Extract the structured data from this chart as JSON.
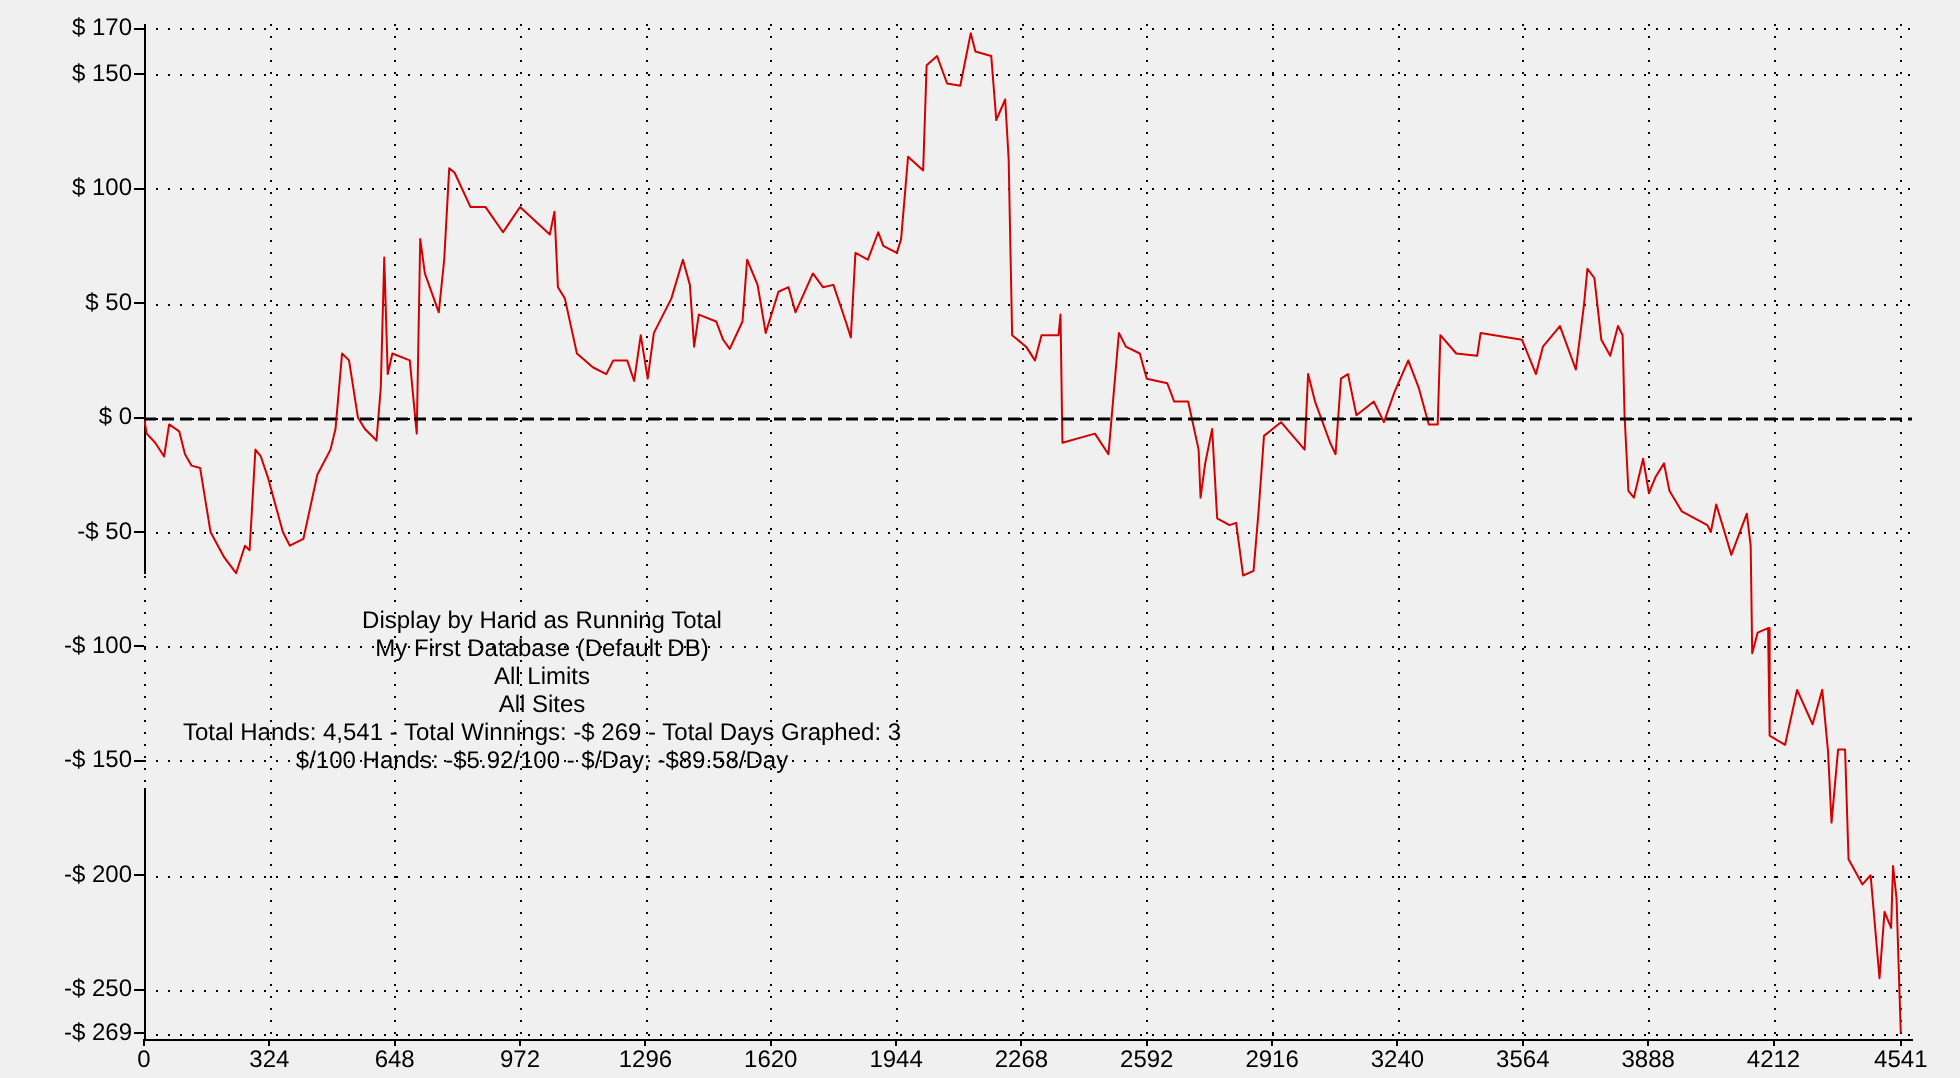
{
  "chart_data": {
    "type": "line",
    "annotations": [
      "Display by Hand as Running Total",
      "My First Database (Default DB)",
      "All Limits",
      "All Sites",
      "Total Hands: 4,541 - Total Winnings: -$ 269 - Total Days Graphed: 3",
      "$/100 Hands: -$5.92/100 - $/Day: -$89.58/Day"
    ],
    "x": [
      0,
      7,
      29,
      52,
      65,
      91,
      106,
      123,
      145,
      172,
      207,
      238,
      261,
      273,
      288,
      302,
      320,
      359,
      377,
      412,
      448,
      482,
      495,
      512,
      530,
      553,
      571,
      601,
      612,
      621,
      630,
      642,
      687,
      705,
      714,
      726,
      762,
      776,
      789,
      803,
      844,
      883,
      928,
      972,
      1049,
      1061,
      1070,
      1088,
      1119,
      1160,
      1195,
      1213,
      1249,
      1267,
      1284,
      1302,
      1318,
      1363,
      1393,
      1411,
      1422,
      1434,
      1479,
      1497,
      1514,
      1547,
      1559,
      1586,
      1607,
      1640,
      1666,
      1684,
      1729,
      1755,
      1782,
      1800,
      1814,
      1827,
      1839,
      1871,
      1898,
      1911,
      1946,
      1957,
      1975,
      2014,
      2023,
      2050,
      2076,
      2110,
      2137,
      2149,
      2190,
      2203,
      2226,
      2235,
      2244,
      2280,
      2303,
      2320,
      2364,
      2369,
      2374,
      2458,
      2493,
      2520,
      2538,
      2574,
      2592,
      2645,
      2663,
      2699,
      2726,
      2731,
      2743,
      2761,
      2774,
      2806,
      2823,
      2841,
      2868,
      2881,
      2895,
      2939,
      3000,
      3009,
      3027,
      3066,
      3080,
      3094,
      3112,
      3134,
      3179,
      3205,
      3232,
      3268,
      3295,
      3321,
      3344,
      3351,
      3392,
      3446,
      3455,
      3562,
      3598,
      3616,
      3660,
      3701,
      3722,
      3731,
      3749,
      3767,
      3790,
      3810,
      3822,
      3827,
      3837,
      3851,
      3875,
      3890,
      3907,
      3929,
      3943,
      3975,
      4041,
      4050,
      4064,
      4082,
      4103,
      4143,
      4153,
      4157,
      4171,
      4198,
      4202,
      4242,
      4273,
      4313,
      4338,
      4353,
      4362,
      4379,
      4397,
      4406,
      4442,
      4463,
      4486,
      4499,
      4516,
      4521,
      4530,
      4541
    ],
    "series": [
      {
        "color": "#d40000",
        "values": [
          0,
          -7,
          -11,
          -17,
          -3,
          -6,
          -16,
          -21,
          -22,
          -50,
          -61,
          -68,
          -56,
          -58,
          -14,
          -17,
          -26,
          -50,
          -56,
          -53,
          -25,
          -14,
          -5,
          28,
          25,
          0,
          -5,
          -10,
          13,
          70,
          19,
          28,
          25,
          -7,
          78,
          63,
          46,
          69,
          109,
          107,
          92,
          92,
          81,
          92,
          80,
          90,
          57,
          52,
          28,
          22,
          19,
          25,
          25,
          16,
          36,
          17,
          37,
          52,
          69,
          58,
          31,
          45,
          42,
          34,
          30,
          42,
          69,
          58,
          37,
          55,
          57,
          46,
          63,
          57,
          58,
          49,
          42,
          35,
          72,
          69,
          81,
          75,
          72,
          78,
          114,
          108,
          154,
          158,
          146,
          145,
          168,
          160,
          158,
          130,
          139,
          113,
          36,
          31,
          25,
          36,
          36,
          45,
          -11,
          -7,
          -16,
          37,
          31,
          28,
          17,
          15,
          7,
          7,
          -14,
          -35,
          -20,
          -5,
          -44,
          -47,
          -46,
          -69,
          -67,
          -41,
          -8,
          -2,
          -14,
          19,
          7,
          -11,
          -16,
          17,
          19,
          1,
          7,
          -2,
          11,
          25,
          13,
          -3,
          -3,
          36,
          28,
          27,
          37,
          34,
          19,
          31,
          40,
          21,
          49,
          65,
          61,
          34,
          27,
          40,
          36,
          1,
          -32,
          -35,
          -18,
          -33,
          -26,
          -20,
          -32,
          -41,
          -47,
          -50,
          -38,
          -48,
          -60,
          -42,
          -56,
          -103,
          -94,
          -92,
          -139,
          -143,
          -119,
          -134,
          -119,
          -146,
          -177,
          -145,
          -145,
          -193,
          -204,
          -200,
          -245,
          -216,
          -223,
          -196,
          -210,
          -269
        ]
      }
    ],
    "xlim": [
      0,
      4570
    ],
    "xticks": [
      0,
      324,
      648,
      972,
      1296,
      1620,
      1944,
      2268,
      2592,
      2916,
      3240,
      3564,
      3888,
      4212,
      4541
    ],
    "ylim": [
      -272,
      172
    ],
    "yticks": [
      {
        "value": 170,
        "label": "$ 170"
      },
      {
        "value": 150,
        "label": "$ 150"
      },
      {
        "value": 100,
        "label": "$ 100"
      },
      {
        "value": 50,
        "label": "$ 50"
      },
      {
        "value": 0,
        "label": "$ 0"
      },
      {
        "value": -50,
        "label": "-$ 50"
      },
      {
        "value": -100,
        "label": "-$ 100"
      },
      {
        "value": -150,
        "label": "-$ 150"
      },
      {
        "value": -200,
        "label": "-$ 200"
      },
      {
        "value": -250,
        "label": "-$ 250"
      },
      {
        "value": -269,
        "label": "-$ 269"
      }
    ],
    "grid": true,
    "ref_lines": [
      {
        "axis": "y",
        "value": 0,
        "color": "#000000",
        "line_style": "dashed"
      }
    ],
    "marker": "none",
    "legend": false
  }
}
